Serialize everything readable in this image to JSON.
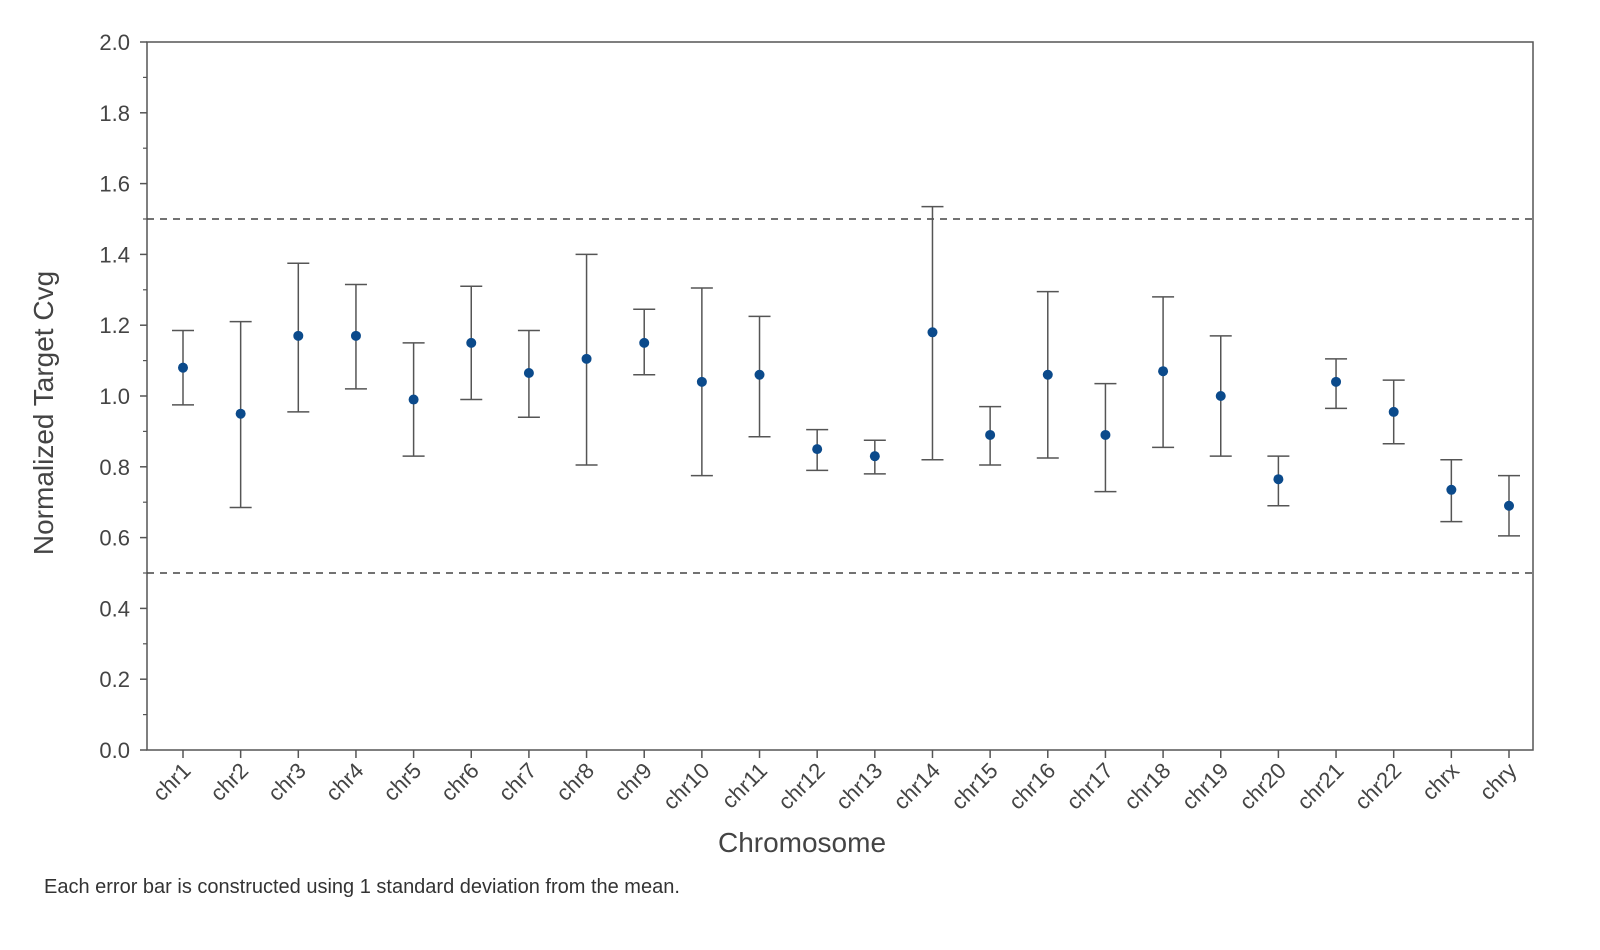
{
  "chart_data": {
    "type": "scatter",
    "categories": [
      "chr1",
      "chr2",
      "chr3",
      "chr4",
      "chr5",
      "chr6",
      "chr7",
      "chr8",
      "chr9",
      "chr10",
      "chr11",
      "chr12",
      "chr13",
      "chr14",
      "chr15",
      "chr16",
      "chr17",
      "chr18",
      "chr19",
      "chr20",
      "chr21",
      "chr22",
      "chrx",
      "chry"
    ],
    "series": [
      {
        "mean": [
          1.08,
          0.95,
          1.17,
          1.17,
          0.99,
          1.15,
          1.065,
          1.105,
          1.15,
          1.04,
          1.06,
          0.85,
          0.83,
          1.18,
          0.89,
          1.06,
          0.89,
          1.07,
          1.0,
          0.765,
          1.04,
          0.955,
          0.735,
          0.69
        ],
        "lower": [
          0.975,
          0.685,
          0.955,
          1.02,
          0.83,
          0.99,
          0.94,
          0.805,
          1.06,
          0.775,
          0.885,
          0.79,
          0.78,
          0.82,
          0.805,
          0.825,
          0.73,
          0.855,
          0.83,
          0.69,
          0.965,
          0.865,
          0.645,
          0.605
        ],
        "upper": [
          1.185,
          1.21,
          1.375,
          1.315,
          1.15,
          1.31,
          1.185,
          1.4,
          1.245,
          1.305,
          1.225,
          0.905,
          0.875,
          1.535,
          0.97,
          1.295,
          1.035,
          1.28,
          1.17,
          0.83,
          1.105,
          1.045,
          0.82,
          0.775
        ]
      }
    ],
    "reference_lines": [
      1.5,
      0.5
    ],
    "xlabel": "Chromosome",
    "ylabel": "Normalized Target Cvg",
    "ylim": [
      0.0,
      2.0
    ],
    "yticks": [
      "0.0",
      "0.2",
      "0.4",
      "0.6",
      "0.8",
      "1.0",
      "1.2",
      "1.4",
      "1.6",
      "1.8",
      "2.0"
    ],
    "grid": false,
    "colors": {
      "point": "#0b4a8b",
      "errorbar": "#555555",
      "axis": "#555555",
      "refline": "#444444"
    }
  },
  "footnote": "Each error bar is constructed using 1 standard deviation from the mean."
}
